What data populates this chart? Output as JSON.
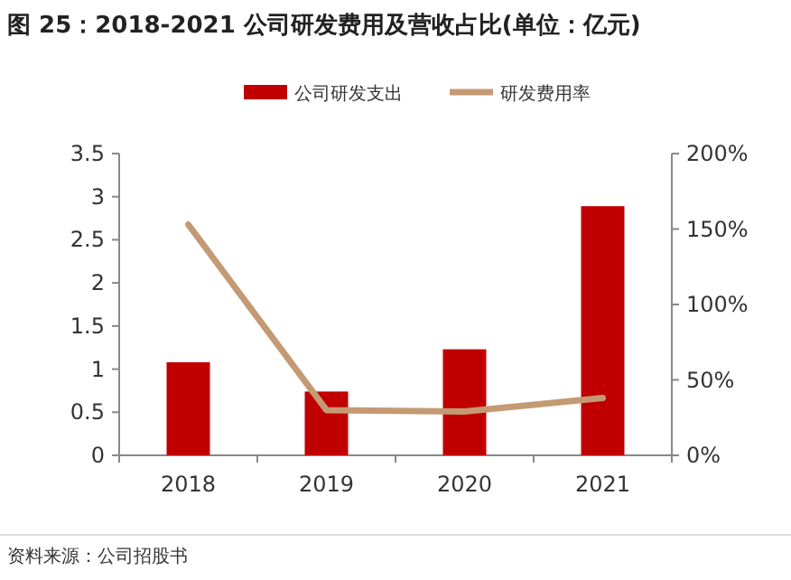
{
  "chart_data": {
    "type": "bar",
    "title": "图 25：2018-2021 公司研发费用及营收占比(单位：亿元)",
    "categories": [
      "2018",
      "2019",
      "2020",
      "2021"
    ],
    "series": [
      {
        "name": "公司研发支出",
        "color": "#c00000",
        "values": [
          1.08,
          0.74,
          1.23,
          2.89
        ]
      },
      {
        "name": "研发费用率",
        "type": "line",
        "axis": "y2",
        "color": "#c49a74",
        "values": [
          153,
          30,
          29,
          38
        ]
      }
    ],
    "ylim": [
      0,
      3.5
    ],
    "yticks": [
      0,
      0.5,
      1,
      1.5,
      2,
      2.5,
      3,
      3.5
    ],
    "y2lim": [
      0,
      200
    ],
    "y2ticks": [
      {
        "value": 0,
        "label": "0%"
      },
      {
        "value": 50,
        "label": "50%"
      },
      {
        "value": 100,
        "label": "100%"
      },
      {
        "value": 150,
        "label": "150%"
      },
      {
        "value": 200,
        "label": "200%"
      }
    ],
    "legend": "top",
    "annotations": [
      "资料来源：公司招股书"
    ]
  }
}
